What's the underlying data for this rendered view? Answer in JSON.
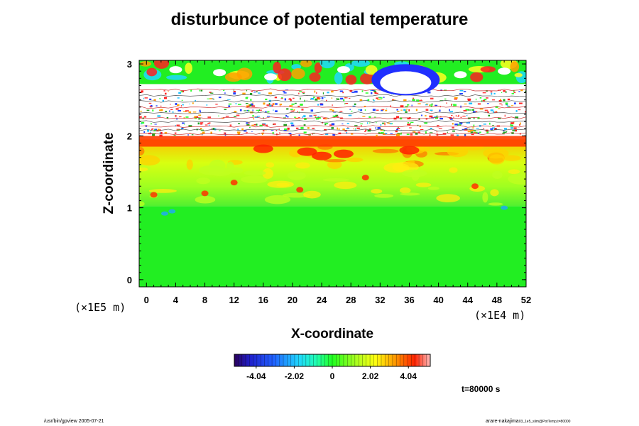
{
  "chart_data": {
    "type": "heatmap",
    "title": "disturbunce of potential temperature",
    "xlabel": "X-coordinate",
    "ylabel": "Z-coordinate",
    "x_unit": "(×1E4 m)",
    "y_unit": "(×1E5 m)",
    "x_ticks": [
      0,
      4,
      8,
      12,
      16,
      20,
      24,
      28,
      32,
      36,
      40,
      44,
      48,
      52
    ],
    "y_ticks": [
      0,
      1,
      2,
      3
    ],
    "xlim": [
      -1,
      52
    ],
    "ylim": [
      -0.1,
      3.05
    ],
    "colorbar": {
      "ticks": [
        "-4.04",
        "-2.02",
        "0",
        "2.02",
        "4.04"
      ],
      "range": [
        -5.2,
        5.2
      ]
    },
    "regions": [
      {
        "z_range": [
          0,
          1
        ],
        "value": 0.2,
        "description": "near-uniform small positive disturbance"
      },
      {
        "z_range": [
          1,
          1.9
        ],
        "value": 1.6,
        "description": "moderate positive disturbance with patches up to about 3.5"
      },
      {
        "z_range": [
          1.9,
          2.0
        ],
        "value": 4.0,
        "description": "strong positive layer"
      },
      {
        "z_range": [
          2.0,
          2.7
        ],
        "value": null,
        "description": "noisy band with many thin contours"
      },
      {
        "z_range": [
          2.7,
          3.05
        ],
        "value": 3.0,
        "description": "alternating strong positive and negative cells"
      }
    ],
    "time": "t=80000 s"
  },
  "footer": {
    "left": "/usr/bin/gpview 2005-07-21",
    "right_main": "arare-nakajima",
    "right_small": "03_1e5_slim@PotTemp,t=80000"
  },
  "colors": {
    "background": "#ffffff",
    "frame": "#000000",
    "base_green": "#22ee22"
  }
}
